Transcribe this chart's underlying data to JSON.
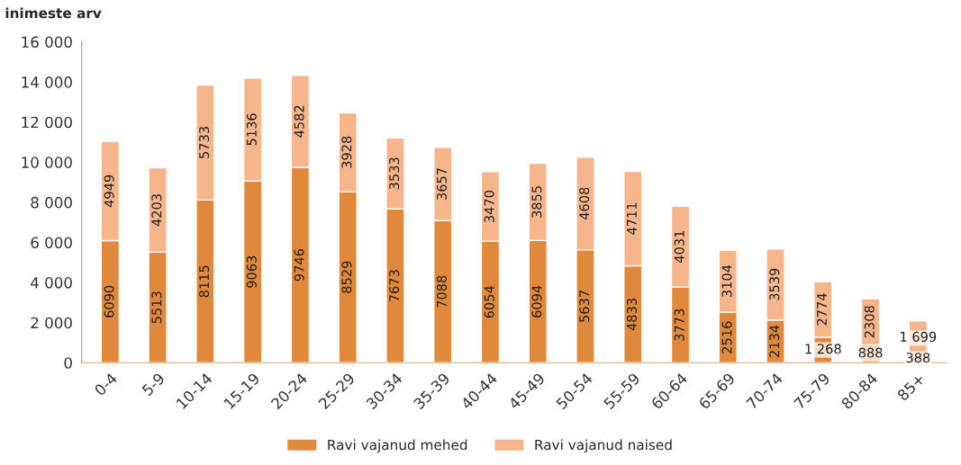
{
  "chart_data": {
    "type": "bar",
    "stacked": true,
    "ylabel": "inimeste arv",
    "categories": [
      "0-4",
      "5-9",
      "10-14",
      "15-19",
      "20-24",
      "25-29",
      "30-34",
      "35-39",
      "40-44",
      "45-49",
      "50-54",
      "55-59",
      "60-64",
      "65-69",
      "70-74",
      "75-79",
      "80-84",
      "85+"
    ],
    "series": [
      {
        "name": "Ravi vajanud mehed",
        "color": "#e0883c",
        "values": [
          6090,
          5513,
          8115,
          9063,
          9746,
          8529,
          7673,
          7088,
          6054,
          6094,
          5637,
          4833,
          3773,
          2516,
          2134,
          1268,
          888,
          388
        ],
        "value_labels": [
          "6090",
          "5513",
          "8115",
          "9063",
          "9746",
          "8529",
          "7673",
          "7088",
          "6054",
          "6094",
          "5637",
          "4833",
          "3773",
          "2516",
          "2134",
          "1 268",
          "888",
          "388"
        ]
      },
      {
        "name": "Ravi vajanud naised",
        "color": "#f7b58c",
        "values": [
          4949,
          4203,
          5733,
          5136,
          4582,
          3928,
          3533,
          3657,
          3470,
          3855,
          4608,
          4711,
          4031,
          3104,
          3539,
          2774,
          2308,
          1699
        ],
        "value_labels": [
          "4949",
          "4203",
          "5733",
          "5136",
          "4582",
          "3928",
          "3533",
          "3657",
          "3470",
          "3855",
          "4608",
          "4711",
          "4031",
          "3104",
          "3539",
          "2774",
          "2308",
          "1 699"
        ]
      }
    ],
    "ylim": [
      0,
      16000
    ],
    "yticks": [
      {
        "value": 0,
        "label": "0"
      },
      {
        "value": 2000,
        "label": "2 000"
      },
      {
        "value": 4000,
        "label": "4 000"
      },
      {
        "value": 6000,
        "label": "6 000"
      },
      {
        "value": 8000,
        "label": "8 000"
      },
      {
        "value": 10000,
        "label": "10 000"
      },
      {
        "value": 12000,
        "label": "12 000"
      },
      {
        "value": 14000,
        "label": "14 000"
      },
      {
        "value": 16000,
        "label": "16 000"
      }
    ],
    "grid": false,
    "legend": "bottom"
  }
}
